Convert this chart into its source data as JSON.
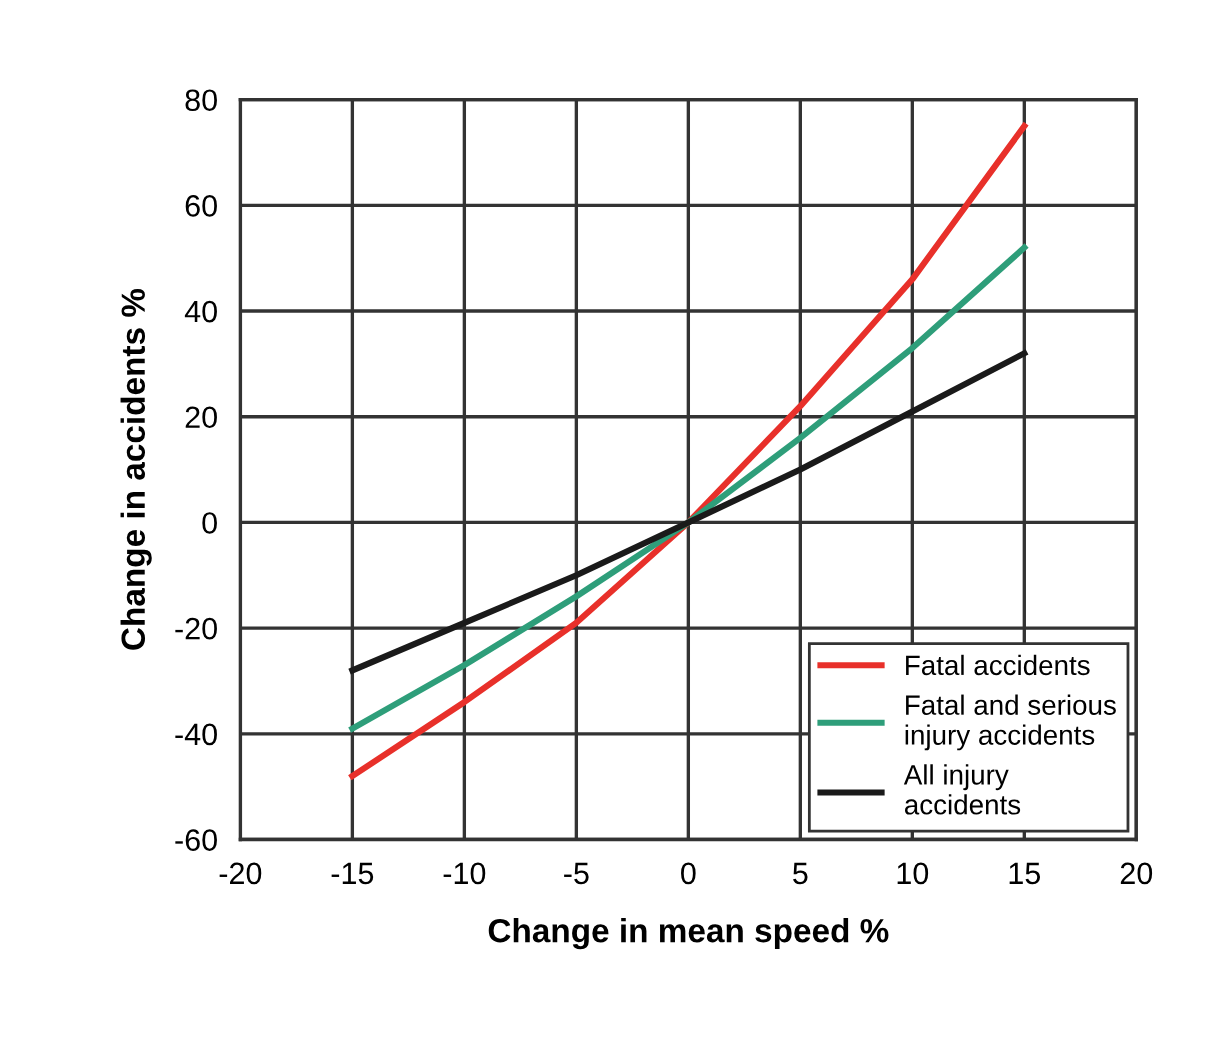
{
  "chart_data": {
    "type": "line",
    "xlabel": "Change in mean speed %",
    "ylabel": "Change in accidents %",
    "x": [
      -15,
      -10,
      -5,
      0,
      5,
      10,
      15
    ],
    "series": [
      {
        "name": "Fatal accidents",
        "color": "#e8302a",
        "values": [
          -48,
          -34,
          -19,
          0,
          22,
          46,
          75
        ]
      },
      {
        "name": "Fatal and serious\ninjury accidents",
        "color": "#2e9e7a",
        "values": [
          -39,
          -27,
          -14,
          0,
          16,
          33,
          52
        ]
      },
      {
        "name": "All injury\naccidents",
        "color": "#1a1a1a",
        "values": [
          -28,
          -19,
          -10,
          0,
          10,
          21,
          32
        ]
      }
    ],
    "xlim": [
      -20,
      20
    ],
    "xticks": [
      -20,
      -15,
      -10,
      -5,
      0,
      5,
      10,
      15,
      20
    ],
    "ylim": [
      -60,
      80
    ],
    "yticks": [
      -60,
      -40,
      -20,
      0,
      20,
      40,
      60,
      80
    ],
    "grid": true,
    "legend": "bottom right",
    "marker": "none",
    "line_style": "solid"
  }
}
